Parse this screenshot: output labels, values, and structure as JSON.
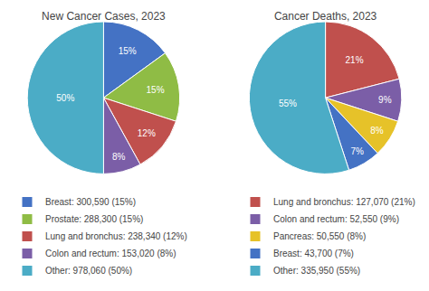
{
  "chart_data": [
    {
      "type": "pie",
      "title": "New Cancer Cases, 2023",
      "categories": [
        "Breast: 300,590 (15%)",
        "Prostate: 288,300 (15%)",
        "Lung and bronchus: 238,340 (12%)",
        "Colon and rectum: 153,020 (8%)",
        "Other: 978,060 (50%)"
      ],
      "values": [
        15,
        15,
        12,
        8,
        50
      ],
      "value_labels": [
        "15%",
        "15%",
        "12%",
        "8%",
        "50%"
      ],
      "colors": [
        "#4472c4",
        "#8fbc45",
        "#c0504d",
        "#7b5ea7",
        "#4bacc6"
      ],
      "data_labels": true,
      "legend": "lower left"
    },
    {
      "type": "pie",
      "title": "Cancer Deaths, 2023",
      "categories": [
        "Lung and bronchus: 127,070 (21%)",
        "Colon and rectum: 52,550 (9%)",
        "Pancreas: 50,550 (8%)",
        "Breast: 43,700 (7%)",
        "Other: 335,950 (55%)"
      ],
      "values": [
        21,
        9,
        8,
        7,
        55
      ],
      "value_labels": [
        "21%",
        "9%",
        "8%",
        "7%",
        "55%"
      ],
      "colors": [
        "#c0504d",
        "#7b5ea7",
        "#e6c229",
        "#4472c4",
        "#4bacc6"
      ],
      "data_labels": true,
      "legend": "lower right"
    }
  ]
}
